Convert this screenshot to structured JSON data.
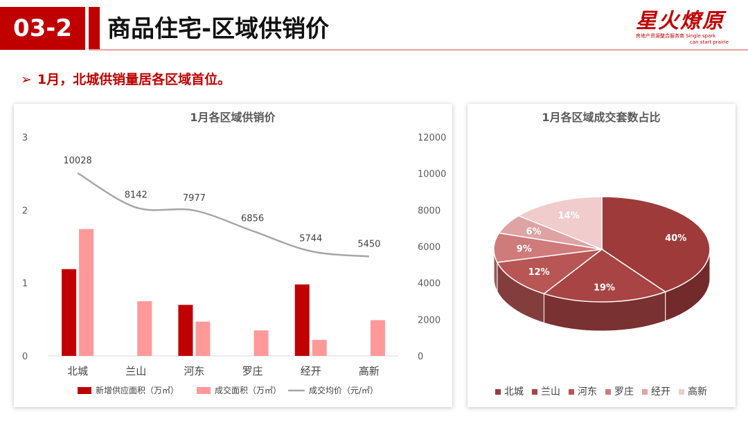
{
  "header": {
    "section_number": "03-2",
    "title": "商品住宅-区域供销价",
    "logo_text": "星火燎原",
    "logo_sub_cn": "房地产资源整合服务商",
    "logo_sub_en_1": "Single spark",
    "logo_sub_en_2": "can start prairie"
  },
  "bullet": {
    "text": "1月，北城供销量居各区域首位。"
  },
  "colors": {
    "accent": "#c00000",
    "supply_bar": "#c00000",
    "deal_bar": "#ff9999",
    "price_line": "#a6a6a6",
    "pie": [
      "#9e3a3a",
      "#a94444",
      "#b85555",
      "#cf7b7b",
      "#dea3a3",
      "#f0cccc"
    ]
  },
  "chart_data": [
    {
      "type": "bar",
      "title": "1月各区域供销价",
      "categories": [
        "北城",
        "兰山",
        "河东",
        "罗庄",
        "经开",
        "高新"
      ],
      "ylim_left": [
        0,
        3
      ],
      "yticks_left": [
        "0",
        "1",
        "2",
        "3"
      ],
      "ylim_right": [
        0,
        12000
      ],
      "yticks_right": [
        "0",
        "2000",
        "4000",
        "6000",
        "8000",
        "10000",
        "12000"
      ],
      "series": [
        {
          "name": "新增供应面积（万㎡）",
          "type": "bar",
          "axis": "left",
          "values": [
            1.19,
            0,
            0.7,
            0,
            0.98,
            0
          ]
        },
        {
          "name": "成交面积（万㎡）",
          "type": "bar",
          "axis": "left",
          "values": [
            1.74,
            0.75,
            0.47,
            0.35,
            0.22,
            0.49
          ]
        },
        {
          "name": "成交均价（元/㎡）",
          "type": "line",
          "axis": "right",
          "values": [
            10028,
            8142,
            7977,
            6856,
            5744,
            5450
          ],
          "labels": [
            "10028",
            "8142",
            "7977",
            "6856",
            "5744",
            "5450"
          ]
        }
      ],
      "legend_position": "bottom",
      "grid": false
    },
    {
      "type": "pie",
      "title": "1月各区域成交套数占比",
      "categories": [
        "北城",
        "兰山",
        "河东",
        "罗庄",
        "经开",
        "高新"
      ],
      "values": [
        40,
        19,
        12,
        9,
        6,
        14
      ],
      "labels": [
        "40%",
        "19%",
        "12%",
        "9%",
        "6%",
        "14%"
      ],
      "legend_position": "bottom",
      "style": "3d"
    }
  ]
}
